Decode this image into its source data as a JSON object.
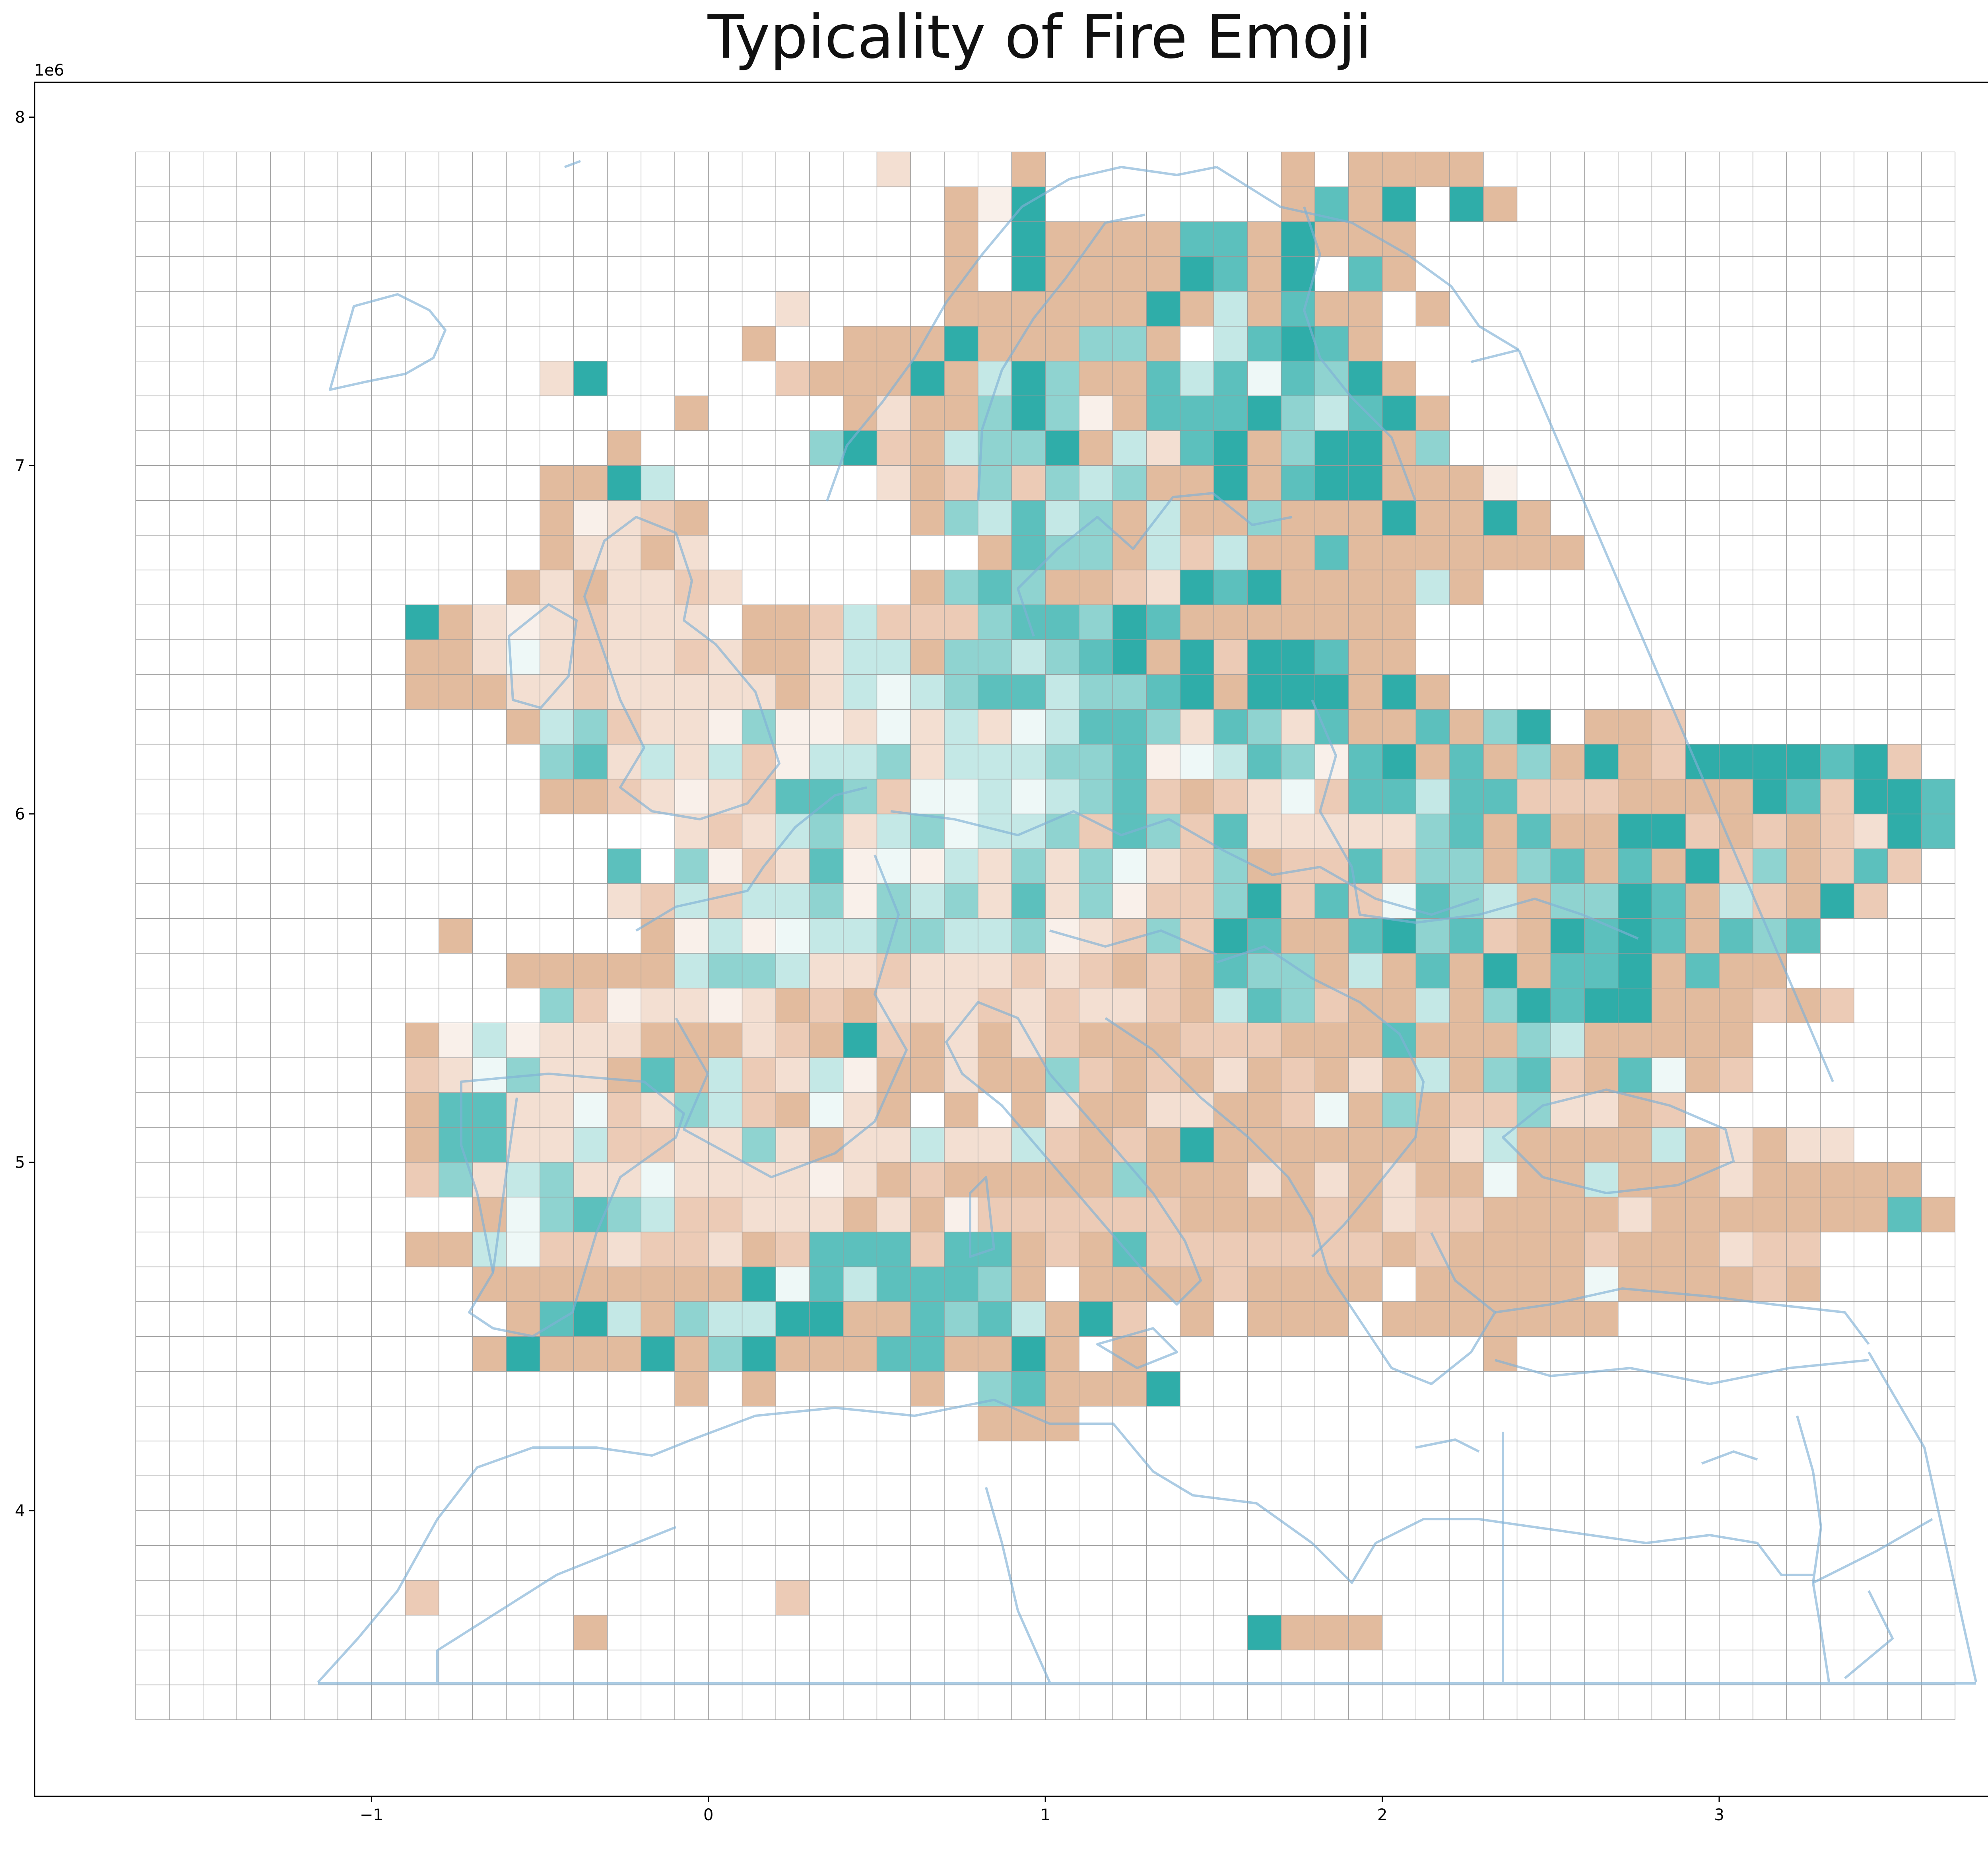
{
  "title": "Typicality of Fire Emoji",
  "axes": {
    "x_exponent": "1e6",
    "y_exponent": "1e6",
    "x_ticks": [
      {
        "value": -1,
        "label": "−1"
      },
      {
        "value": 0,
        "label": "0"
      },
      {
        "value": 1,
        "label": "1"
      },
      {
        "value": 2,
        "label": "2"
      },
      {
        "value": 3,
        "label": "3"
      }
    ],
    "y_ticks": [
      {
        "value": 4,
        "label": "4"
      },
      {
        "value": 5,
        "label": "5"
      },
      {
        "value": 6,
        "label": "6"
      },
      {
        "value": 7,
        "label": "7"
      },
      {
        "value": 8,
        "label": "8"
      }
    ],
    "xlim": [
      -2.0,
      3.93
    ],
    "ylim": [
      3.18,
      8.1
    ]
  },
  "colors": {
    "background": "#ffffff",
    "grid": "#9a9a9a",
    "coast": "#7fb0d6",
    "palette": {
      "T4": "#2fada9",
      "T3": "#5cc0bd",
      "T2": "#8fd3d0",
      "T1": "#c4e8e6",
      "T0": "#eef8f7",
      "B1": "#f9f0ea",
      "B2": "#f3dfd2",
      "B3": "#eccbb6",
      "B4": "#e2bb9e"
    }
  },
  "chart_data": {
    "type": "heatmap",
    "title": "Typicality of Fire Emoji",
    "grid": {
      "x0": -1.7,
      "y0": 3.4,
      "cell_size": 0.1,
      "columns": 54,
      "rows": 45
    },
    "scale": [
      "T4",
      "T3",
      "T2",
      "T1",
      "T0",
      "B1",
      "B2",
      "B3",
      "B4"
    ],
    "scale_note": "T = more typical (teal), B = less typical (tan)",
    "rows_from_top": [
      "......................B2...B4.......B4.B4B4B4B4........................",
      "........................B4B1T4.......B4T3B4T4.T4B4.....................",
      "........................B4.T4B4B4B4B4T3T3B4T4B4B4B4....................",
      "........................B4.T4B4B4B4B4T4T3B4T4.T3B4.....................",
      "...................B2....B4B4B4B4B4B4T4B4T1B4T3B4B4.B4................",
      "..................B4..B4B4B4T4B4B4B4T2T2B4.T1T3T4T3B4..................",
      "............B2T4.....B3B4B4B4T4B4T1T4T2B4B4T3T1T3T0T3T2T4B4............",
      "................B4....B4B2B4B4T2T4T2B1B4T3T3T3T4T2T1T3T4B4..............",
      "..............B4.....T2T4B3B4T1T2T2T4B4T1B2T3T4B4T2T4T4B4T2............",
      "............B4B4T4T1......B2B4B3T2B3T2T1T2B4B4T4B4T3T4T4B4B4B4B1.......",
      "............B4B1B2B3B4......B4T2T1T3T1T2B4T1B4B4T2B4B4B4T4B4B4T4B4.....",
      "............B4B2B2B4B2........B4T3T2T2B4T1B3T1B4B4T3B4B4B4B4B4B4B4.....",
      "...........B4B2B4B2B2B3B2.....B4T2T3T2B4B4B3B2T4T3T4B4B4B4B4T1B4.......",
      "........T4B4B2B1B2B3B2B2B2.B4B4B3T1B3B3B3T2T3T3T2T4T3B4B4B4B4B4B4B4....",
      "........B4B4B2T0B2B3B2B2B3B2B4B4B2T1T1B4T2T2T1T2T3T4B4T4B3T4T4T3B4B4...",
      "........B4B4B4B2B2B3B2B2B2B2B2B4B2T1T0T1T2T3T3T1T2T2T3T4B4T4T4T4B4T4B4..",
      "...........B4T1T2B3B2B2B1T2B1B1B2T0B2T1B2T0T1T3T3T2B2T3T2B2T3B4B4T3B4T2T4.B4B4B3",
      "............T2T3B2T1B2T1B3B1T1T1T2B2T1T1T1T2T2T3B1T0T1T3T2B1T3T4B4T3B4T2B4T4B4B3T4T4T4T4T3T4B3",
      "............B4B4B3B2B1B2B3T3T3T2B3T0T0T1T0T1T2T3B3B4B3B2T0B3T3T3T1T3T3B3B3B3B4B4B4B4T4T3B3T4T4T3B4T3",
      "................B2B3B2T1T2B2T1T2T0T1T1T2B3T3T2B3T3B2B2B2B2B2T2T3B4T3B4B4T4T4B3B4B3B4B3B2T4T3",
      "..............T3.T2B1B3B2T3B1T0B1T1B2T2B2T2T0B2B3T2B4B3B3T3B3T2T2B4T2T3B4T3B4T4B3T2B4B3T3B3",
      "..............B2B3T1B3T1T1T2B1T2T1T2B2T3B2T2B1B3B3T2T4B3T3B3T0T3T2T1B4T2T2T4T3B4T1B3B4T4B3",
      ".........B4.....B4B1T1B1T0T1T1T2T2T1T1T2B1B2B3T2B3T4T3B4B4T3T4T2T3B3B4T4T3T4T3B4T3T2T3",
      "...........B4B4B4B4B4T1T2T2T1B2B2B3B2B2B2B3B2B3B4B3B4T3T2T2B4T1B4T3B4T4B4T3T3T4B4T3B4B4",
      "............T2B3B1B2B2B1B2B4B3B4B2B2B2B3B2B3B2B2B3B4T1T3T2B3B4B4T1B4T2T4T3T4T4B4B4B4B3B4B3",
      "........B4B1T1B1B2B2B2B4B4B4B2B3B4T4B3B4B2B4B2B3B4B4B4B3B3B3B4B4B4T3B4B4B4T2T1B4B4B4B4B4",
      "........B3B2T0T2B2B2B4T3B4T1B3B2T1B1B4B4B2B4B4T2B3B4B3B4B2B4B3B4B2B4T1B4T2T3B3B4T3T0B4B3",
      "........B4T3T3B2B2T0B3B2T2T1B3B4T0B2B4.B4.B4B2B4B4B2B2B4B4B3T0B4T2B4B3B3T2B2B2B4B3",
      "........B4T3T3B2B2T1B3B3B2B2T2B2B4B2B2T1B2B2T1B3B4B3B4T4B4B4B4B4B4B4B4B2T1B4B4B4B4T1B4B2B4B2B2",
      "........B3T2B2T1T2B2B2T0B2B2B2B2B1B2B4B3B4B4B4B4B4T2B4B4B4B2B4B2B4B2B4B4T0B4B4T1B4B4B4B2B4B4B4B4B4.B4",
      "..........B4T0T2T3T2T1B3B3B2B2B2B4B2B4B1B3B3B3B3B3B3B4B4B4B4B3B4B2B3B3B4B4B4B4B2B4B4B4B4B4B4B4T3B4T2",
      "........B4B4T1T0B3B3B2B3B3B2B4B3T3T3T3B3T3T3B4B3B4T3B3B3B3B3B3B3B3B4B3B4B4B4B4B3B4B4B4B2B3B3",
      "..........B4B4B4B4B4B4B4B4T4T0T3T1T3T3T3T2B4.B4B4B4B4B3B4B4B4B4.B4B4B4B4B4T0B4B4B4B4B3B4",
      "...........B4T3T4T1B4T2T1T1T4T4B4B4T3T2T3T1B4T4B3.B4.B4B4B4.B4B4B4B4B4B4B4",
      "..........B4T4B4B4B4T4B4T2T4B4B4B4T3T3B4B4T4B4.B4..........B4",
      "................B4.B4....B4.T2T3B4B4B4T4",
      ".........................B4B4B4",
      "",
      "",
      "",
      "",
      "........B3..........B3",
      ".............B4...................T4B4B4B4"
    ]
  }
}
